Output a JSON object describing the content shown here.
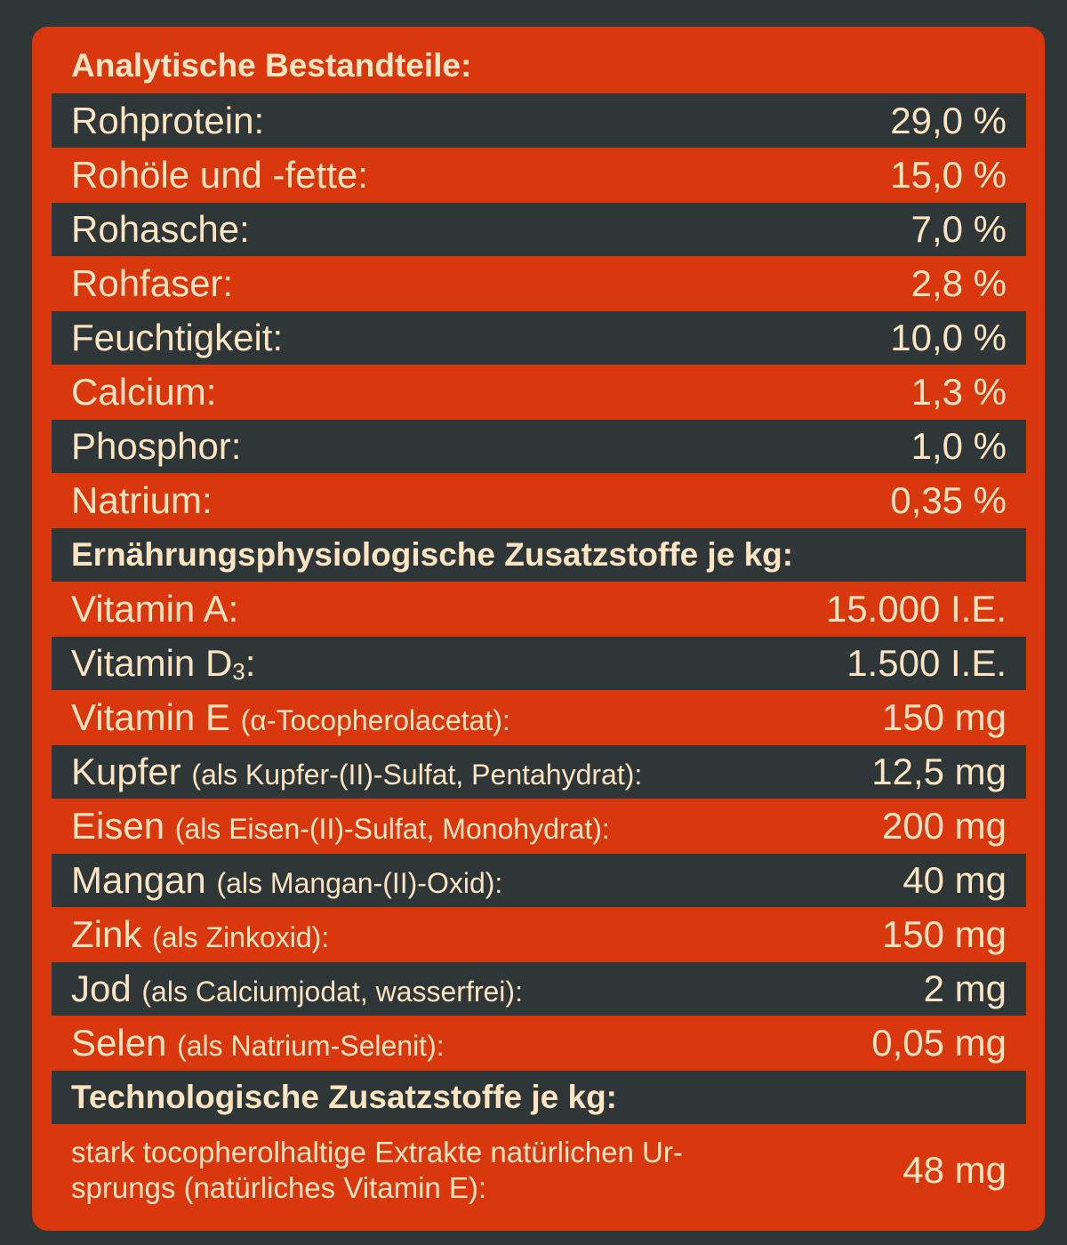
{
  "sections": {
    "analytisch": {
      "title": "Analytische Bestandteile:",
      "rows": [
        {
          "label": "Rohprotein:",
          "value": "29,0 %"
        },
        {
          "label": "Rohöle und -fette:",
          "value": "15,0 %"
        },
        {
          "label": "Rohasche:",
          "value": "7,0 %"
        },
        {
          "label": "Rohfaser:",
          "value": "2,8 %"
        },
        {
          "label": "Feuchtigkeit:",
          "value": "10,0 %"
        },
        {
          "label": "Calcium:",
          "value": "1,3 %"
        },
        {
          "label": "Phosphor:",
          "value": "1,0 %"
        },
        {
          "label": "Natrium:",
          "value": "0,35 %"
        }
      ]
    },
    "ernaehrung": {
      "title": "Ernährungsphysiologische Zusatzstoffe je kg:",
      "rows": [
        {
          "label": "Vitamin A:",
          "detail": "",
          "value": "15.000 I.E."
        },
        {
          "label": "Vitamin D",
          "subscript": "3",
          "detail": ":",
          "value": "1.500 I.E."
        },
        {
          "label": "Vitamin E",
          "detail": "(α-Tocopherolacetat):",
          "value": "150 mg"
        },
        {
          "label": "Kupfer",
          "detail": "(als Kupfer-(II)-Sulfat, Pentahydrat):",
          "value": "12,5 mg"
        },
        {
          "label": "Eisen",
          "detail": "(als Eisen-(II)-Sulfat, Monohydrat):",
          "value": "200 mg"
        },
        {
          "label": "Mangan",
          "detail": "(als Mangan-(II)-Oxid):",
          "value": "40 mg"
        },
        {
          "label": "Zink",
          "detail": "(als Zinkoxid):",
          "value": "150 mg"
        },
        {
          "label": "Jod",
          "detail": "(als Calciumjodat, wasserfrei):",
          "value": "2 mg"
        },
        {
          "label": "Selen",
          "detail": "(als Natrium-Selenit):",
          "value": "0,05 mg"
        }
      ]
    },
    "technologisch": {
      "title": "Technologische Zusatzstoffe je kg:",
      "rows": [
        {
          "label_line1": "stark tocopherolhaltige Extrakte natürlichen Ur-",
          "label_line2": "sprungs (natürliches Vitamin E):",
          "value": "48 mg"
        }
      ]
    }
  }
}
